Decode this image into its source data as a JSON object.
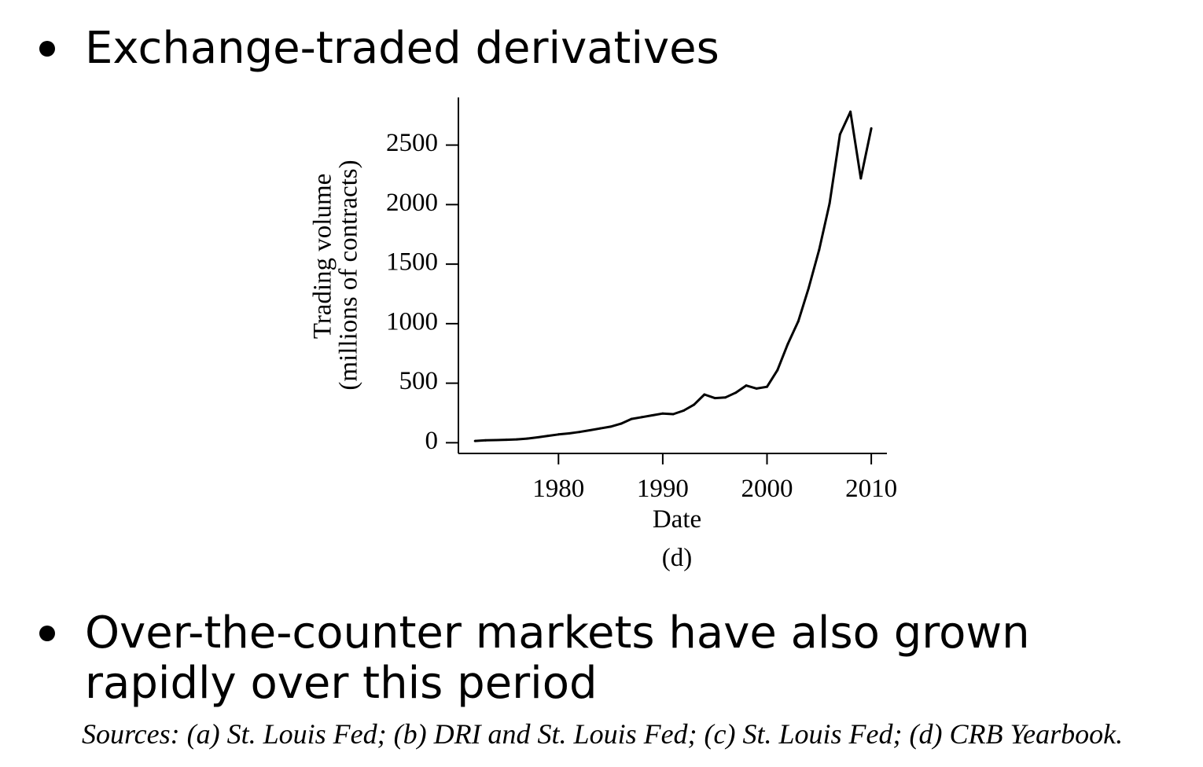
{
  "bullets": [
    {
      "text": "Exchange-traded derivatives"
    },
    {
      "line1": "Over-the-counter markets have also grown",
      "line2": "rapidly over this period"
    }
  ],
  "sources": "Sources: (a) St. Louis Fed; (b) DRI and St. Louis Fed; (c) St. Louis Fed; (d) CRB Yearbook.",
  "chart_data": {
    "type": "line",
    "title": "",
    "xlabel": "Date",
    "ylabel_line1": "Trading volume",
    "ylabel_line2": "(millions of contracts)",
    "panel_label": "(d)",
    "xlim": [
      1970.4,
      2011.5
    ],
    "ylim": [
      -90,
      2900
    ],
    "xticks": [
      1980,
      1990,
      2000,
      2010
    ],
    "yticks": [
      0,
      500,
      1000,
      1500,
      2000,
      2500
    ],
    "grid": false,
    "line_color": "#000000",
    "series": [
      {
        "x": [
          1972,
          1973,
          1974,
          1975,
          1976,
          1977,
          1978,
          1979,
          1980,
          1981,
          1982,
          1983,
          1984,
          1985,
          1986,
          1987,
          1988,
          1989,
          1990,
          1991,
          1992,
          1993,
          1994,
          1995,
          1996,
          1997,
          1998,
          1999,
          2000,
          2001,
          2002,
          2003,
          2004,
          2005,
          2006,
          2007,
          2008,
          2009,
          2010
        ],
        "y": [
          15,
          20,
          22,
          25,
          28,
          35,
          45,
          58,
          70,
          78,
          90,
          105,
          120,
          135,
          160,
          200,
          215,
          230,
          245,
          240,
          270,
          320,
          405,
          375,
          380,
          420,
          480,
          455,
          470,
          610,
          830,
          1020,
          1300,
          1620,
          2010,
          2590,
          2780,
          2220,
          2640
        ]
      }
    ]
  }
}
